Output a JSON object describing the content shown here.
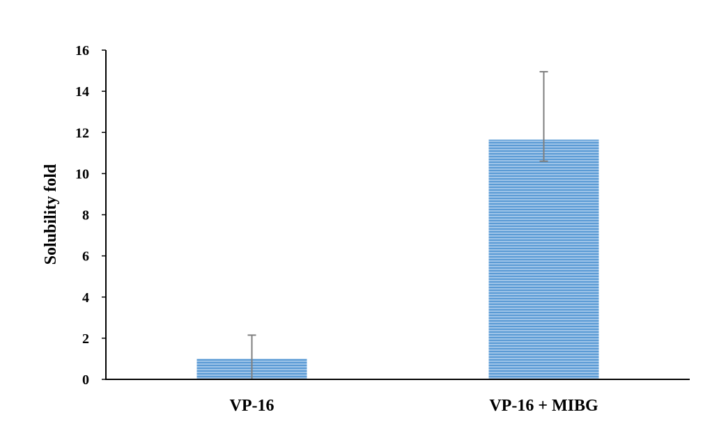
{
  "chart_data": {
    "type": "bar",
    "title": "",
    "xlabel": "",
    "ylabel": "Solubility fold",
    "ylim": [
      0,
      16
    ],
    "yticks": [
      0,
      2,
      4,
      6,
      8,
      10,
      12,
      14,
      16
    ],
    "grid": false,
    "categories": [
      "VP-16",
      "VP-16 + MIBG"
    ],
    "values": [
      1.0,
      11.65
    ],
    "errors": {
      "upper": [
        1.15,
        3.3
      ],
      "lower": [
        1.0,
        1.05
      ]
    },
    "colors": {
      "bar_fill": "#9ec4e8",
      "bar_stripe": "#5b9bd5",
      "error_bar": "#7f7f7f",
      "axis": "#000000"
    }
  }
}
